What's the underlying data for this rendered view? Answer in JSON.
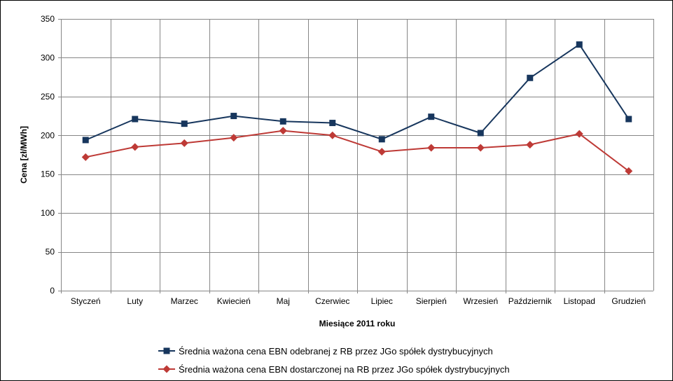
{
  "chart_data": {
    "type": "line",
    "categories": [
      "Styczeń",
      "Luty",
      "Marzec",
      "Kwiecień",
      "Maj",
      "Czerwiec",
      "Lipiec",
      "Sierpień",
      "Wrzesień",
      "Październik",
      "Listopad",
      "Grudzień"
    ],
    "series": [
      {
        "name": "Średnia ważona cena EBN odebranej z RB przez JGo spółek dystrybucyjnych",
        "color": "#17365D",
        "marker": "square",
        "values": [
          194,
          221,
          215,
          225,
          218,
          216,
          195,
          224,
          203,
          274,
          317,
          221
        ]
      },
      {
        "name": "Średnia ważona cena EBN dostarczonej na RB przez JGo spółek dystrybucyjnych",
        "color": "#BE3A36",
        "marker": "diamond",
        "values": [
          172,
          185,
          190,
          197,
          206,
          200,
          179,
          184,
          184,
          188,
          202,
          154
        ]
      }
    ],
    "xlabel": "Miesiące 2011  roku",
    "ylabel": "Cena [zł/MWh]",
    "ylim": [
      0,
      350
    ],
    "yticks": [
      0,
      50,
      100,
      150,
      200,
      250,
      300,
      350
    ],
    "grid": true,
    "legend": "bottom"
  }
}
